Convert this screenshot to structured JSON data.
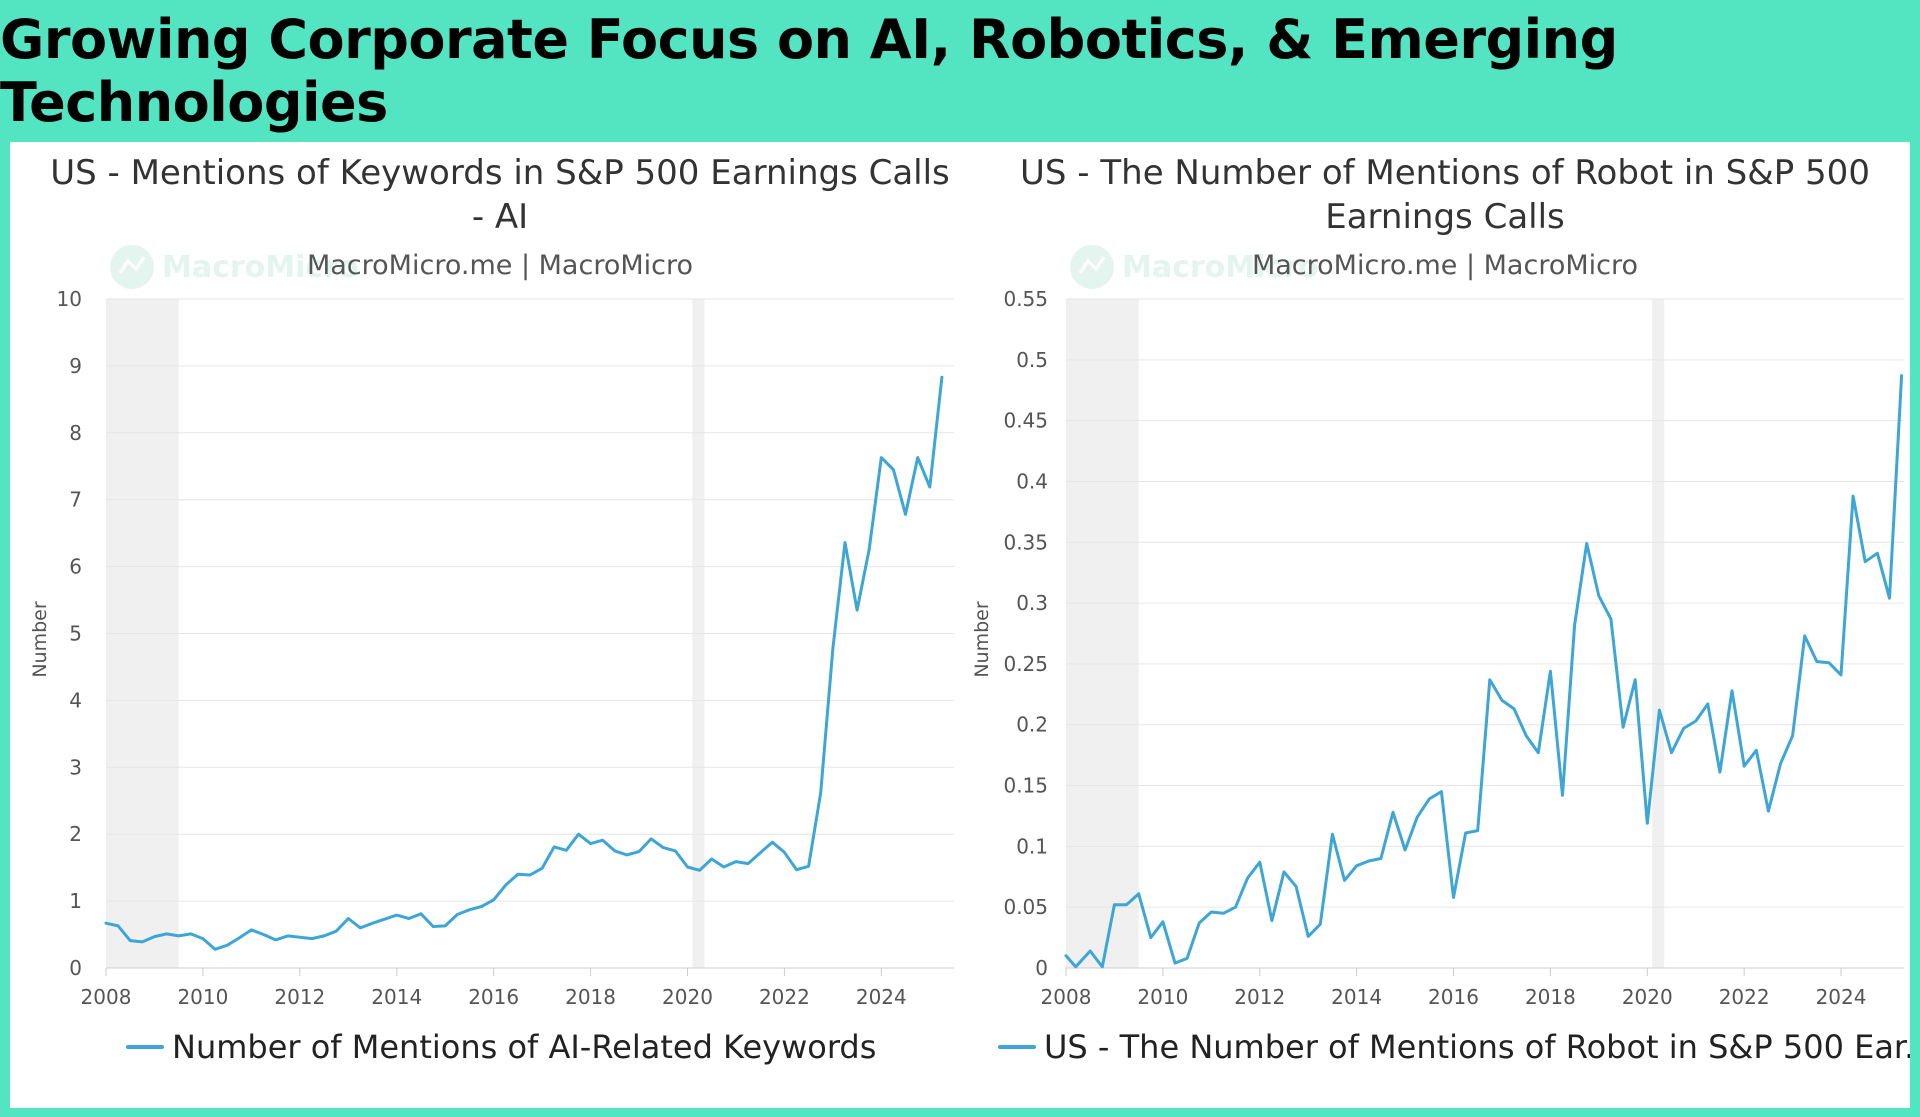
{
  "header": {
    "title": "Growing Corporate Focus on AI, Robotics, & Emerging Technologies"
  },
  "colors": {
    "line": "#3ea6d6",
    "banner": "#53e4c1",
    "shade": "#f0f0f0",
    "grid": "#e6e6e6"
  },
  "chart_data": [
    {
      "type": "line",
      "title_lines": [
        "US - Mentions of Keywords in S&P 500 Earnings Calls",
        "- AI"
      ],
      "subtitle": "MacroMicro.me | MacroMicro",
      "watermark": "MacroMicro",
      "xlabel": "",
      "ylabel": "Number",
      "ylim": [
        0,
        10
      ],
      "yticks": [
        "0",
        "1",
        "2",
        "3",
        "4",
        "5",
        "6",
        "7",
        "8",
        "9",
        "10"
      ],
      "xlim": [
        2008,
        2025.5
      ],
      "xticks": [
        "2008",
        "2010",
        "2012",
        "2014",
        "2016",
        "2018",
        "2020",
        "2022",
        "2024"
      ],
      "shaded_periods": [
        [
          2008.0,
          2009.5
        ],
        [
          2020.1,
          2020.35
        ]
      ],
      "legend": "bottom",
      "series": [
        {
          "name": "Number of Mentions of AI-Related Keywords",
          "x": [
            2008.0,
            2008.25,
            2008.5,
            2008.75,
            2009.0,
            2009.25,
            2009.5,
            2009.75,
            2010.0,
            2010.25,
            2010.5,
            2010.75,
            2011.0,
            2011.25,
            2011.5,
            2011.75,
            2012.0,
            2012.25,
            2012.5,
            2012.75,
            2013.0,
            2013.25,
            2013.5,
            2013.75,
            2014.0,
            2014.25,
            2014.5,
            2014.75,
            2015.0,
            2015.25,
            2015.5,
            2015.75,
            2016.0,
            2016.25,
            2016.5,
            2016.75,
            2017.0,
            2017.25,
            2017.5,
            2017.75,
            2018.0,
            2018.25,
            2018.5,
            2018.75,
            2019.0,
            2019.25,
            2019.5,
            2019.75,
            2020.0,
            2020.25,
            2020.5,
            2020.75,
            2021.0,
            2021.25,
            2021.5,
            2021.75,
            2022.0,
            2022.25,
            2022.5,
            2022.75,
            2023.0,
            2023.25,
            2023.5,
            2023.75,
            2024.0,
            2024.25,
            2024.5,
            2024.75,
            2025.0,
            2025.25
          ],
          "values": [
            0.67,
            0.63,
            0.41,
            0.39,
            0.47,
            0.51,
            0.48,
            0.51,
            0.44,
            0.28,
            0.34,
            0.45,
            0.57,
            0.5,
            0.42,
            0.48,
            0.46,
            0.44,
            0.48,
            0.55,
            0.74,
            0.6,
            0.67,
            0.73,
            0.79,
            0.74,
            0.81,
            0.62,
            0.63,
            0.8,
            0.87,
            0.92,
            1.02,
            1.24,
            1.4,
            1.39,
            1.49,
            1.81,
            1.76,
            2.0,
            1.86,
            1.91,
            1.75,
            1.69,
            1.74,
            1.93,
            1.8,
            1.75,
            1.51,
            1.46,
            1.63,
            1.51,
            1.59,
            1.56,
            1.72,
            1.88,
            1.73,
            1.47,
            1.52,
            2.62,
            4.78,
            6.36,
            5.35,
            6.26,
            7.63,
            7.45,
            6.78,
            7.63,
            7.19,
            8.83
          ]
        }
      ]
    },
    {
      "type": "line",
      "title_lines": [
        "US - The Number of Mentions of Robot in S&P 500",
        "Earnings Calls"
      ],
      "subtitle": "MacroMicro.me | MacroMicro",
      "watermark": "MacroMicro",
      "xlabel": "",
      "ylabel": "Number",
      "ylim": [
        0,
        0.55
      ],
      "yticks": [
        "0",
        "0.05",
        "0.1",
        "0.15",
        "0.2",
        "0.25",
        "0.3",
        "0.35",
        "0.4",
        "0.45",
        "0.5",
        "0.55"
      ],
      "xlim": [
        2008,
        2025.3
      ],
      "xticks": [
        "2008",
        "2010",
        "2012",
        "2014",
        "2016",
        "2018",
        "2020",
        "2022",
        "2024"
      ],
      "shaded_periods": [
        [
          2008.0,
          2009.5
        ],
        [
          2020.1,
          2020.35
        ]
      ],
      "legend": "bottom",
      "series": [
        {
          "name": "US - The Number of Mentions of Robot in S&P 500 Ear...",
          "x": [
            2008.0,
            2008.2,
            2008.5,
            2008.75,
            2009.0,
            2009.25,
            2009.5,
            2009.75,
            2010.0,
            2010.25,
            2010.5,
            2010.75,
            2011.0,
            2011.25,
            2011.5,
            2011.75,
            2012.0,
            2012.25,
            2012.5,
            2012.75,
            2013.0,
            2013.25,
            2013.5,
            2013.75,
            2014.0,
            2014.25,
            2014.5,
            2014.75,
            2015.0,
            2015.25,
            2015.5,
            2015.75,
            2016.0,
            2016.25,
            2016.5,
            2016.75,
            2017.0,
            2017.25,
            2017.5,
            2017.75,
            2018.0,
            2018.25,
            2018.5,
            2018.75,
            2019.0,
            2019.25,
            2019.5,
            2019.75,
            2020.0,
            2020.25,
            2020.5,
            2020.75,
            2021.0,
            2021.25,
            2021.5,
            2021.75,
            2022.0,
            2022.25,
            2022.5,
            2022.75,
            2023.0,
            2023.25,
            2023.5,
            2023.75,
            2024.0,
            2024.25,
            2024.5,
            2024.75,
            2025.0,
            2025.25
          ],
          "values": [
            0.01,
            0.001,
            0.014,
            0.001,
            0.052,
            0.052,
            0.061,
            0.025,
            0.038,
            0.004,
            0.008,
            0.037,
            0.046,
            0.045,
            0.05,
            0.074,
            0.087,
            0.039,
            0.079,
            0.067,
            0.026,
            0.036,
            0.11,
            0.072,
            0.084,
            0.088,
            0.09,
            0.128,
            0.097,
            0.124,
            0.139,
            0.145,
            0.058,
            0.111,
            0.113,
            0.237,
            0.22,
            0.213,
            0.191,
            0.177,
            0.244,
            0.142,
            0.282,
            0.349,
            0.306,
            0.287,
            0.198,
            0.237,
            0.119,
            0.212,
            0.177,
            0.197,
            0.203,
            0.217,
            0.161,
            0.228,
            0.166,
            0.179,
            0.129,
            0.168,
            0.191,
            0.273,
            0.252,
            0.251,
            0.241,
            0.388,
            0.334,
            0.341,
            0.304,
            0.487
          ]
        }
      ]
    }
  ]
}
